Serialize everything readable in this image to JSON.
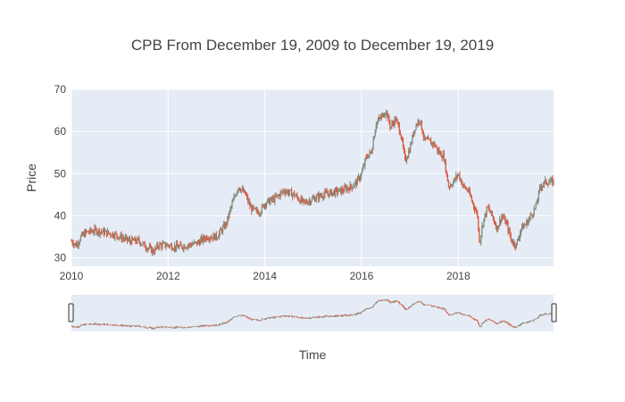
{
  "chart_data": {
    "type": "line",
    "title": "CPB From December 19, 2009 to December 19, 2019",
    "xlabel": "Time",
    "ylabel": "Price",
    "xlim": [
      2010.0,
      2019.97
    ],
    "ylim": [
      28,
      70
    ],
    "x_ticks": [
      {
        "value": 2010,
        "label": "2010"
      },
      {
        "value": 2012,
        "label": "2012"
      },
      {
        "value": 2014,
        "label": "2014"
      },
      {
        "value": 2016,
        "label": "2016"
      },
      {
        "value": 2018,
        "label": "2018"
      }
    ],
    "y_ticks": [
      {
        "value": 30,
        "label": "30"
      },
      {
        "value": 40,
        "label": "40"
      },
      {
        "value": 50,
        "label": "50"
      },
      {
        "value": 60,
        "label": "60"
      },
      {
        "value": 70,
        "label": "70"
      }
    ],
    "grid": true,
    "legend": false,
    "colors": {
      "up": "#7f8c7a",
      "down": "#d9583f",
      "plot_bg": "#e5ecf6",
      "grid": "#ffffff"
    },
    "range_slider": true,
    "series": [
      {
        "x": [
          2010.0,
          2010.1,
          2010.2,
          2010.3,
          2010.5,
          2010.7,
          2010.9,
          2011.0,
          2011.2,
          2011.4,
          2011.5,
          2011.7,
          2011.8,
          2012.0,
          2012.2,
          2012.4,
          2012.6,
          2012.8,
          2013.0,
          2013.2,
          2013.3,
          2013.45,
          2013.6,
          2013.7,
          2013.8,
          2013.9,
          2014.0,
          2014.2,
          2014.4,
          2014.6,
          2014.8,
          2015.0,
          2015.2,
          2015.4,
          2015.6,
          2015.8,
          2015.9,
          2016.0,
          2016.1,
          2016.2,
          2016.3,
          2016.45,
          2016.5,
          2016.6,
          2016.7,
          2016.8,
          2016.9,
          2017.0,
          2017.1,
          2017.2,
          2017.3,
          2017.5,
          2017.6,
          2017.7,
          2017.8,
          2017.9,
          2018.0,
          2018.1,
          2018.2,
          2018.3,
          2018.4,
          2018.42,
          2018.45,
          2018.5,
          2018.6,
          2018.7,
          2018.8,
          2018.9,
          2019.0,
          2019.1,
          2019.2,
          2019.3,
          2019.4,
          2019.5,
          2019.6,
          2019.7,
          2019.8,
          2019.97
        ],
        "values": [
          34,
          33,
          35,
          36,
          36.5,
          36,
          35.5,
          35,
          34,
          34,
          33,
          31.5,
          33,
          33,
          32.5,
          33,
          33.5,
          35,
          35,
          38,
          42,
          47,
          45,
          42,
          41,
          41,
          43,
          44,
          46,
          45,
          43,
          44,
          45,
          45.5,
          46,
          47,
          48,
          50,
          54,
          55,
          62,
          64,
          65,
          61,
          63,
          60,
          53,
          56,
          61,
          63,
          58,
          57,
          55,
          54,
          47,
          48,
          50,
          47,
          46,
          43,
          40,
          35,
          34,
          38,
          42,
          40,
          37,
          40,
          38,
          34,
          33,
          37,
          38,
          40,
          42,
          47,
          48,
          48
        ]
      }
    ]
  }
}
